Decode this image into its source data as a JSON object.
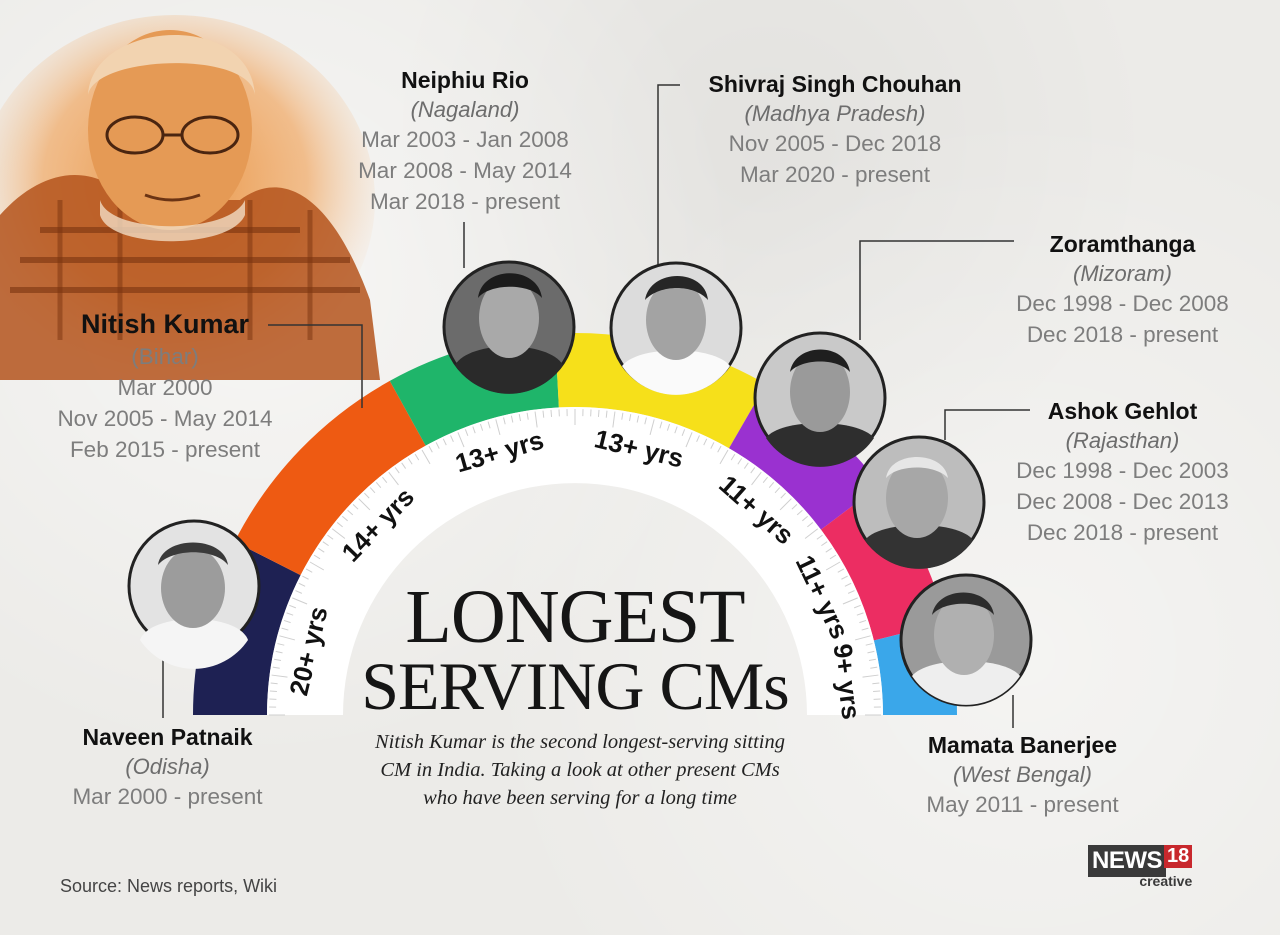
{
  "title_line1": "LONGEST",
  "title_line2": "SERVING CMs",
  "subtitle_line1": "Nitish Kumar is the second longest-serving sitting",
  "subtitle_line2": "CM in India. Taking a look at other present CMs",
  "subtitle_line3": "who have been serving for a long time",
  "source": "Source: News reports, Wiki",
  "logo": {
    "news": "NEWS",
    "num": "18",
    "creative": "creative"
  },
  "people": {
    "nitish": {
      "name": "Nitish Kumar",
      "state": "(Bihar)",
      "terms": [
        "Mar 2000",
        "Nov 2005 - May 2014",
        "Feb 2015 - present"
      ]
    },
    "naveen": {
      "name": "Naveen Patnaik",
      "state": "(Odisha)",
      "terms": [
        "Mar 2000 - present"
      ]
    },
    "neiphiu": {
      "name": "Neiphiu Rio",
      "state": "(Nagaland)",
      "terms": [
        "Mar 2003 - Jan 2008",
        "Mar 2008 - May 2014",
        "Mar 2018 - present"
      ]
    },
    "shivraj": {
      "name": "Shivraj Singh Chouhan",
      "state": "(Madhya Pradesh)",
      "terms": [
        "Nov 2005 - Dec 2018",
        "Mar 2020 - present"
      ]
    },
    "zoram": {
      "name": "Zoramthanga",
      "state": "(Mizoram)",
      "terms": [
        "Dec 1998 -  Dec 2008",
        "Dec 2018 - present"
      ]
    },
    "ashok": {
      "name": "Ashok Gehlot",
      "state": "(Rajasthan)",
      "terms": [
        "Dec 1998 -  Dec 2003",
        "Dec 2008 - Dec 2013",
        "Dec 2018 - present"
      ]
    },
    "mamata": {
      "name": "Mamata Banerjee",
      "state": "(West Bengal)",
      "terms": [
        "May 2011 - present"
      ]
    }
  },
  "arc_segments": [
    {
      "label": "20+ yrs",
      "color": "#1e2153"
    },
    {
      "label": "14+ yrs",
      "color": "#ee5a12"
    },
    {
      "label": "13+ yrs",
      "color": "#1fb56a"
    },
    {
      "label": "13+ yrs",
      "color": "#f6e01a"
    },
    {
      "label": "11+ yrs",
      "color": "#9a31d0"
    },
    {
      "label": "11+ yrs",
      "color": "#ec2d62"
    },
    {
      "label": "9+ yrs",
      "color": "#3aa7ea"
    }
  ]
}
